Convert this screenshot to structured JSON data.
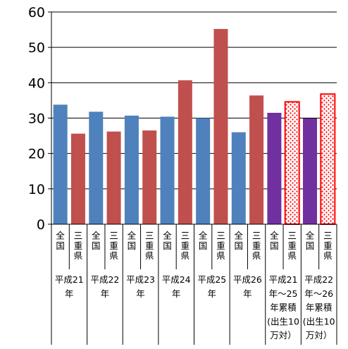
{
  "chart_data": {
    "type": "bar",
    "ylim": [
      0,
      60
    ],
    "yticks": [
      "0",
      "10",
      "20",
      "30",
      "40",
      "50",
      "60"
    ],
    "grid": true,
    "legend": "none",
    "groups": [
      {
        "label": "平成21年",
        "lines": [
          "平成21",
          "年"
        ],
        "bars": [
          {
            "category": "全国",
            "value": 33.8,
            "color": "#4F81BD",
            "style": "solid"
          },
          {
            "category": "三重県",
            "value": 25.6,
            "color": "#C0504D",
            "style": "solid"
          }
        ]
      },
      {
        "label": "平成22年",
        "lines": [
          "平成22",
          "年"
        ],
        "bars": [
          {
            "category": "全国",
            "value": 31.8,
            "color": "#4F81BD",
            "style": "solid"
          },
          {
            "category": "三重県",
            "value": 26.2,
            "color": "#C0504D",
            "style": "solid"
          }
        ]
      },
      {
        "label": "平成23年",
        "lines": [
          "平成23",
          "年"
        ],
        "bars": [
          {
            "category": "全国",
            "value": 30.7,
            "color": "#4F81BD",
            "style": "solid"
          },
          {
            "category": "三重県",
            "value": 26.5,
            "color": "#C0504D",
            "style": "solid"
          }
        ]
      },
      {
        "label": "平成24年",
        "lines": [
          "平成24",
          "年"
        ],
        "bars": [
          {
            "category": "全国",
            "value": 30.4,
            "color": "#4F81BD",
            "style": "solid"
          },
          {
            "category": "三重県",
            "value": 40.7,
            "color": "#C0504D",
            "style": "solid"
          }
        ]
      },
      {
        "label": "平成25年",
        "lines": [
          "平成25",
          "年"
        ],
        "bars": [
          {
            "category": "全国",
            "value": 30.0,
            "color": "#4F81BD",
            "style": "solid"
          },
          {
            "category": "三重県",
            "value": 55.2,
            "color": "#C0504D",
            "style": "solid"
          }
        ]
      },
      {
        "label": "平成26年",
        "lines": [
          "平成26",
          "年"
        ],
        "bars": [
          {
            "category": "全国",
            "value": 26.0,
            "color": "#4F81BD",
            "style": "solid"
          },
          {
            "category": "三重県",
            "value": 36.4,
            "color": "#C0504D",
            "style": "solid"
          }
        ]
      },
      {
        "label": "平成21年～25年累積(出生10万対）",
        "lines": [
          "平成21",
          "年～25",
          "年累積",
          "(出生10",
          "万対）"
        ],
        "bars": [
          {
            "category": "全国",
            "value": 31.5,
            "color": "#7030A0",
            "style": "solid"
          },
          {
            "category": "三重県",
            "value": 34.6,
            "color": "#FF0000",
            "style": "dotted"
          }
        ]
      },
      {
        "label": "平成22年～26年累積(出生10万対）",
        "lines": [
          "平成22",
          "年～26",
          "年累積",
          "(出生10",
          "万対）"
        ],
        "bars": [
          {
            "category": "全国",
            "value": 29.9,
            "color": "#7030A0",
            "style": "solid"
          },
          {
            "category": "三重県",
            "value": 36.8,
            "color": "#FF0000",
            "style": "dotted"
          }
        ]
      }
    ]
  }
}
